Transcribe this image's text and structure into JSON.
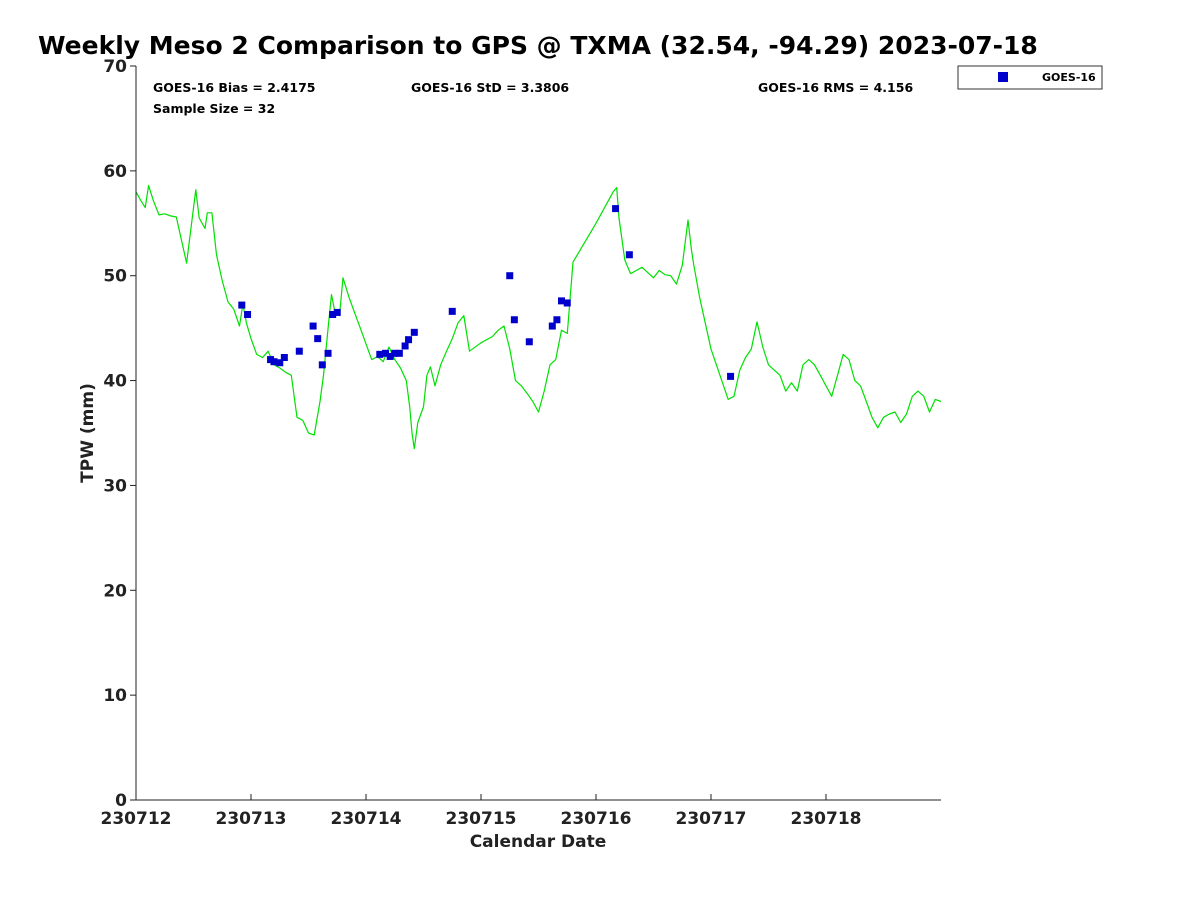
{
  "chart_data": {
    "type": "scatter",
    "title": "Weekly Meso 2 Comparison to GPS @ TXMA (32.54, -94.29) 2023-07-18",
    "xlabel": "Calendar Date",
    "ylabel": "TPW (mm)",
    "xlim": [
      230712,
      230719
    ],
    "ylim": [
      0,
      70
    ],
    "x_tick_values": [
      230712,
      230713,
      230714,
      230715,
      230716,
      230717,
      230718
    ],
    "x_tick_labels": [
      "230712",
      "230713",
      "230714",
      "230715",
      "230716",
      "230717",
      "230718"
    ],
    "y_ticks": [
      0,
      10,
      20,
      30,
      40,
      50,
      60,
      70
    ],
    "grid": false,
    "legend_position": "top-right",
    "stats": {
      "bias": "GOES-16 Bias = 2.4175",
      "std": "GOES-16 StD = 3.3806",
      "rms": "GOES-16 RMS = 4.156",
      "sample_size": "Sample Size = 32"
    },
    "series": [
      {
        "name": "GOES-16",
        "kind": "scatter",
        "marker": "square",
        "color": "#0000cc",
        "x": [
          230712.92,
          230712.97,
          230713.17,
          230713.2,
          230713.25,
          230713.29,
          230713.42,
          230713.54,
          230713.58,
          230713.62,
          230713.67,
          230713.71,
          230713.75,
          230714.12,
          230714.17,
          230714.21,
          230714.25,
          230714.29,
          230714.34,
          230714.37,
          230714.42,
          230714.75,
          230715.25,
          230715.29,
          230715.42,
          230715.62,
          230715.66,
          230715.7,
          230715.75,
          230716.17,
          230716.29,
          230717.17
        ],
        "y": [
          47.2,
          46.3,
          42.0,
          41.8,
          41.7,
          42.2,
          42.8,
          45.2,
          44.0,
          41.5,
          42.6,
          46.3,
          46.5,
          42.5,
          42.6,
          42.3,
          42.6,
          42.6,
          43.3,
          43.9,
          44.6,
          46.6,
          50.0,
          45.8,
          43.7,
          45.2,
          45.8,
          47.6,
          47.4,
          56.4,
          52.0,
          40.4
        ]
      },
      {
        "name": "",
        "kind": "line",
        "color": "#00e000",
        "x": [
          230712.0,
          230712.04,
          230712.08,
          230712.11,
          230712.15,
          230712.2,
          230712.25,
          230712.3,
          230712.35,
          230712.44,
          230712.52,
          230712.55,
          230712.6,
          230712.62,
          230712.66,
          230712.68,
          230712.7,
          230712.72,
          230712.75,
          230712.8,
          230712.85,
          230712.9,
          230712.93,
          230712.96,
          230713.0,
          230713.05,
          230713.1,
          230713.15,
          230713.2,
          230713.25,
          230713.3,
          230713.35,
          230713.4,
          230713.45,
          230713.5,
          230713.55,
          230713.6,
          230713.63,
          230713.67,
          230713.7,
          230713.73,
          230713.77,
          230713.8,
          230713.85,
          230713.9,
          230713.95,
          230714.0,
          230714.05,
          230714.1,
          230714.15,
          230714.2,
          230714.25,
          230714.3,
          230714.35,
          230714.38,
          230714.4,
          230714.42,
          230714.45,
          230714.5,
          230714.53,
          230714.56,
          230714.6,
          230714.65,
          230714.7,
          230714.75,
          230714.8,
          230714.85,
          230714.9,
          230715.0,
          230715.1,
          230715.15,
          230715.2,
          230715.25,
          230715.3,
          230715.35,
          230715.4,
          230715.45,
          230715.5,
          230715.55,
          230715.6,
          230715.65,
          230715.7,
          230715.75,
          230715.8,
          230716.0,
          230716.15,
          230716.18,
          230716.2,
          230716.25,
          230716.3,
          230716.35,
          230716.4,
          230716.45,
          230716.5,
          230716.55,
          230716.6,
          230716.65,
          230716.7,
          230716.75,
          230716.8,
          230716.83,
          230716.85,
          230716.9,
          230717.0,
          230717.1,
          230717.15,
          230717.2,
          230717.25,
          230717.3,
          230717.35,
          230717.4,
          230717.45,
          230717.5,
          230717.55,
          230717.6,
          230717.65,
          230717.7,
          230717.75,
          230717.8,
          230717.85,
          230717.9,
          230717.95,
          230718.0,
          230718.05,
          230718.1,
          230718.15,
          230718.2,
          230718.25,
          230718.3,
          230718.35,
          230718.4,
          230718.45,
          230718.5,
          230718.55,
          230718.6,
          230718.65,
          230718.7,
          230718.75,
          230718.8,
          230718.85,
          230718.9,
          230718.95,
          230719.0
        ],
        "y": [
          58.0,
          57.2,
          56.5,
          58.6,
          57.2,
          55.8,
          55.9,
          55.7,
          55.6,
          51.2,
          58.2,
          55.5,
          54.5,
          56.0,
          56.0,
          54.0,
          52.0,
          51.0,
          49.5,
          47.5,
          46.8,
          45.2,
          47.3,
          45.5,
          44.0,
          42.5,
          42.2,
          42.8,
          41.5,
          41.2,
          40.8,
          40.5,
          36.5,
          36.2,
          35.0,
          34.8,
          38.0,
          40.5,
          45.0,
          48.2,
          46.5,
          46.2,
          49.8,
          48.0,
          46.5,
          45.0,
          43.5,
          42.0,
          42.3,
          41.8,
          43.2,
          42.0,
          41.2,
          40.0,
          37.5,
          35.0,
          33.5,
          36.0,
          37.5,
          40.5,
          41.3,
          39.5,
          41.5,
          42.8,
          44.0,
          45.5,
          46.2,
          42.8,
          43.6,
          44.2,
          44.8,
          45.2,
          43.0,
          40.0,
          39.5,
          38.8,
          38.0,
          37.0,
          39.0,
          41.5,
          42.0,
          44.8,
          44.5,
          51.3,
          55.0,
          58.0,
          58.4,
          55.5,
          51.5,
          50.2,
          50.5,
          50.8,
          50.3,
          49.8,
          50.5,
          50.1,
          50.0,
          49.2,
          51.0,
          55.3,
          52.5,
          51.0,
          48.0,
          43.0,
          39.8,
          38.2,
          38.5,
          41.0,
          42.2,
          43.0,
          45.6,
          43.2,
          41.5,
          41.0,
          40.5,
          39.0,
          39.8,
          39.0,
          41.5,
          42.0,
          41.5,
          40.5,
          39.5,
          38.5,
          40.5,
          42.5,
          42.0,
          40.0,
          39.5,
          38.0,
          36.5,
          35.5,
          36.5,
          36.8,
          37.0,
          36.0,
          36.8,
          38.5,
          39.0,
          38.5,
          37.0,
          38.2,
          38.0
        ]
      }
    ]
  }
}
